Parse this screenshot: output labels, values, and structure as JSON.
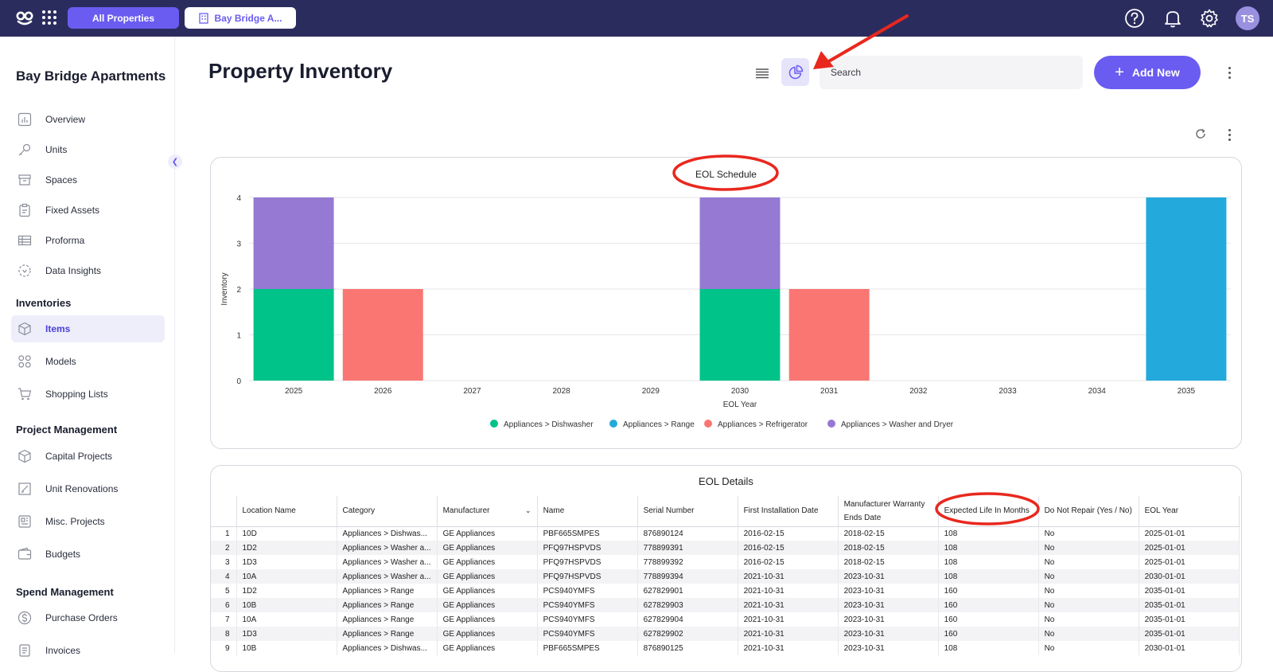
{
  "topbar": {
    "all_properties_label": "All Properties",
    "property_tab_label": "Bay Bridge A...",
    "avatar_initials": "TS",
    "icons": [
      "help-icon",
      "bell-icon",
      "gear-icon"
    ]
  },
  "sidebar": {
    "property_name": "Bay Bridge Apartments",
    "top_items": [
      {
        "label": "Overview",
        "icon": "chart-icon"
      },
      {
        "label": "Units",
        "icon": "key-icon"
      },
      {
        "label": "Spaces",
        "icon": "box-icon"
      },
      {
        "label": "Fixed Assets",
        "icon": "clipboard-icon"
      },
      {
        "label": "Proforma",
        "icon": "table-icon"
      },
      {
        "label": "Data Insights",
        "icon": "insights-icon"
      }
    ],
    "sections": [
      {
        "title": "Inventories",
        "items": [
          {
            "label": "Items",
            "icon": "cube-icon",
            "active": true
          },
          {
            "label": "Models",
            "icon": "grid-icon"
          },
          {
            "label": "Shopping Lists",
            "icon": "cart-icon"
          }
        ]
      },
      {
        "title": "Project Management",
        "items": [
          {
            "label": "Capital Projects",
            "icon": "cube-icon"
          },
          {
            "label": "Unit Renovations",
            "icon": "brush-icon"
          },
          {
            "label": "Misc. Projects",
            "icon": "doc-icon"
          },
          {
            "label": "Budgets",
            "icon": "wallet-icon"
          }
        ]
      },
      {
        "title": "Spend Management",
        "items": [
          {
            "label": "Purchase Orders",
            "icon": "dollar-icon"
          },
          {
            "label": "Invoices",
            "icon": "invoice-icon"
          }
        ]
      }
    ]
  },
  "header": {
    "title": "Property Inventory",
    "search_placeholder": "Search",
    "add_new_label": "Add New"
  },
  "chart_data": {
    "type": "bar",
    "stacked": true,
    "title": "EOL Schedule",
    "xlabel": "EOL Year",
    "ylabel": "Inventory",
    "ylim": [
      0,
      4
    ],
    "yticks": [
      0,
      1,
      2,
      3,
      4
    ],
    "categories": [
      "2025",
      "2026",
      "2027",
      "2028",
      "2029",
      "2030",
      "2031",
      "2032",
      "2033",
      "2034",
      "2035"
    ],
    "legend_position": "bottom",
    "series": [
      {
        "name": "Appliances > Dishwasher",
        "color": "#00c389",
        "values": [
          2,
          0,
          0,
          0,
          0,
          2,
          0,
          0,
          0,
          0,
          0
        ]
      },
      {
        "name": "Appliances > Range",
        "color": "#23a9db",
        "values": [
          0,
          0,
          0,
          0,
          0,
          0,
          0,
          0,
          0,
          0,
          4
        ]
      },
      {
        "name": "Appliances > Refrigerator",
        "color": "#fa7673",
        "values": [
          0,
          2,
          0,
          0,
          0,
          0,
          2,
          0,
          0,
          0,
          0
        ]
      },
      {
        "name": "Appliances > Washer and Dryer",
        "color": "#9579d3",
        "values": [
          2,
          0,
          0,
          0,
          0,
          2,
          0,
          0,
          0,
          0,
          0
        ]
      }
    ]
  },
  "table": {
    "title": "EOL Details",
    "columns": [
      "Location Name",
      "Category",
      "Manufacturer",
      "Name",
      "Serial Number",
      "First Installation Date",
      "Manufacturer Warranty Ends Date",
      "Expected Life In Months",
      "Do Not Repair (Yes / No)",
      "EOL Year"
    ],
    "rows": [
      [
        "1",
        "10D",
        "Appliances > Dishwas...",
        "GE Appliances",
        "PBF665SMPES",
        "876890124",
        "2016-02-15",
        "2018-02-15",
        "108",
        "No",
        "2025-01-01"
      ],
      [
        "2",
        "1D2",
        "Appliances > Washer a...",
        "GE Appliances",
        "PFQ97HSPVDS",
        "778899391",
        "2016-02-15",
        "2018-02-15",
        "108",
        "No",
        "2025-01-01"
      ],
      [
        "3",
        "1D3",
        "Appliances > Washer a...",
        "GE Appliances",
        "PFQ97HSPVDS",
        "778899392",
        "2016-02-15",
        "2018-02-15",
        "108",
        "No",
        "2025-01-01"
      ],
      [
        "4",
        "10A",
        "Appliances > Washer a...",
        "GE Appliances",
        "PFQ97HSPVDS",
        "778899394",
        "2021-10-31",
        "2023-10-31",
        "108",
        "No",
        "2030-01-01"
      ],
      [
        "5",
        "1D2",
        "Appliances > Range",
        "GE Appliances",
        "PCS940YMFS",
        "627829901",
        "2021-10-31",
        "2023-10-31",
        "160",
        "No",
        "2035-01-01"
      ],
      [
        "6",
        "10B",
        "Appliances > Range",
        "GE Appliances",
        "PCS940YMFS",
        "627829903",
        "2021-10-31",
        "2023-10-31",
        "160",
        "No",
        "2035-01-01"
      ],
      [
        "7",
        "10A",
        "Appliances > Range",
        "GE Appliances",
        "PCS940YMFS",
        "627829904",
        "2021-10-31",
        "2023-10-31",
        "160",
        "No",
        "2035-01-01"
      ],
      [
        "8",
        "1D3",
        "Appliances > Range",
        "GE Appliances",
        "PCS940YMFS",
        "627829902",
        "2021-10-31",
        "2023-10-31",
        "160",
        "No",
        "2035-01-01"
      ],
      [
        "9",
        "10B",
        "Appliances > Dishwas...",
        "GE Appliances",
        "PBF665SMPES",
        "876890125",
        "2021-10-31",
        "2023-10-31",
        "108",
        "No",
        "2030-01-01"
      ]
    ]
  },
  "annotation_color": "#e8281e"
}
